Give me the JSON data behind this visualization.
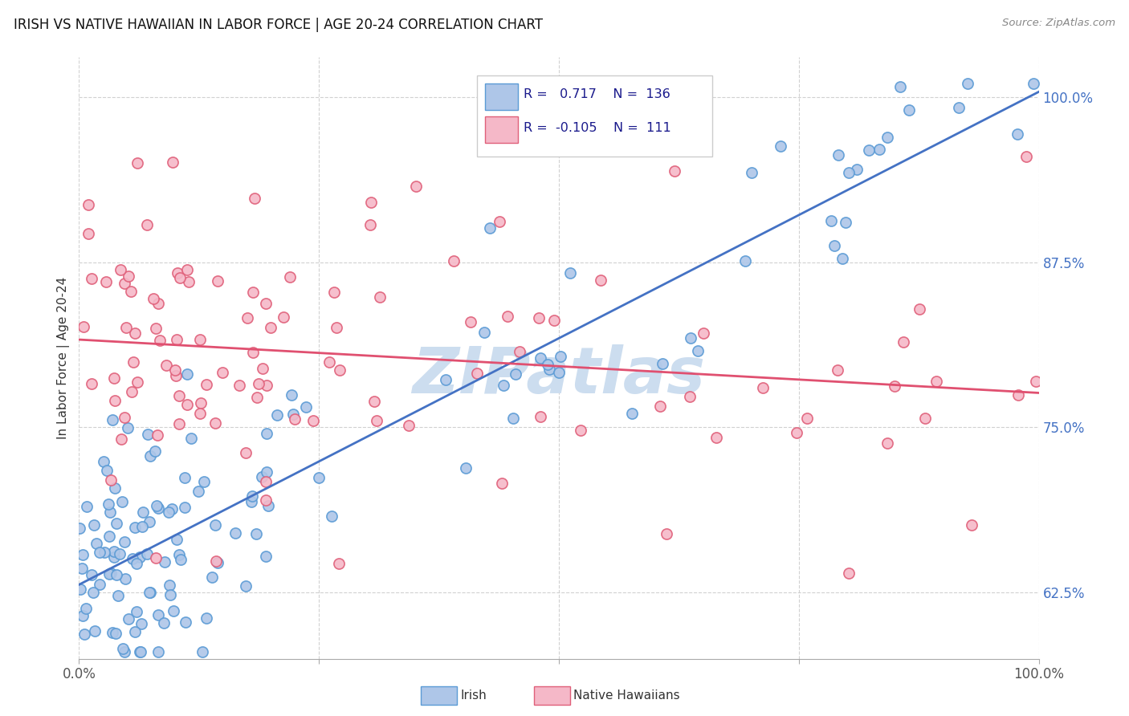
{
  "title": "IRISH VS NATIVE HAWAIIAN IN LABOR FORCE | AGE 20-24 CORRELATION CHART",
  "source": "Source: ZipAtlas.com",
  "ylabel": "In Labor Force | Age 20-24",
  "ytick_labels": [
    "62.5%",
    "75.0%",
    "87.5%",
    "100.0%"
  ],
  "ytick_vals": [
    0.625,
    0.75,
    0.875,
    1.0
  ],
  "xlim": [
    0.0,
    1.0
  ],
  "ylim": [
    0.575,
    1.03
  ],
  "legend_irish_R": "0.717",
  "legend_irish_N": "136",
  "legend_hawaiian_R": "-0.105",
  "legend_hawaiian_N": "111",
  "irish_face_color": "#aec6e8",
  "irish_edge_color": "#5b9bd5",
  "hawaiian_face_color": "#f5b8c8",
  "hawaiian_edge_color": "#e0607a",
  "irish_line_color": "#4472c4",
  "hawaiian_line_color": "#e05070",
  "background_color": "#ffffff",
  "grid_color": "#cccccc",
  "title_color": "#111111",
  "title_fontsize": 12,
  "right_tick_color": "#4472c4",
  "watermark_color": "#ccddef",
  "watermark_text": "ZIPatlas"
}
